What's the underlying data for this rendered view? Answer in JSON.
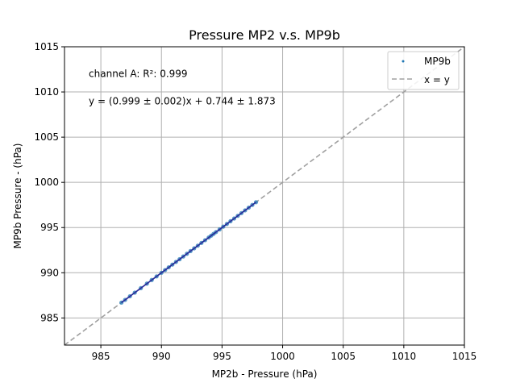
{
  "chart_data": {
    "type": "scatter",
    "title": "Pressure MP2 v.s. MP9b",
    "xlabel": "MP2b - Pressure (hPa)",
    "ylabel": "MP9b Pressure - (hPa)",
    "xlim": [
      982,
      1015
    ],
    "ylim": [
      982,
      1015
    ],
    "xticks": [
      "985",
      "990",
      "995",
      "1000",
      "1005",
      "1010",
      "1015"
    ],
    "yticks": [
      "985",
      "990",
      "995",
      "1000",
      "1005",
      "1010",
      "1015"
    ],
    "grid": true,
    "legend_position": "top-right",
    "annotations": [
      {
        "text": "channel A: R²: 0.999",
        "x": 984,
        "y": 1012
      },
      {
        "text": "y = (0.999 ± 0.002)x + 0.744 ± 1.873",
        "x": 984,
        "y": 1009
      }
    ],
    "series": [
      {
        "name": "MP9b",
        "kind": "scatter",
        "color": "#1f77b4",
        "points_x": [
          986.7,
          987.0,
          987.4,
          987.8,
          988.3,
          988.8,
          989.2,
          989.6,
          990.0,
          990.3,
          990.6,
          990.9,
          991.2,
          991.5,
          991.8,
          992.1,
          992.4,
          992.7,
          993.0,
          993.3,
          993.6,
          993.9,
          994.1,
          994.3,
          994.5,
          994.8,
          995.1,
          995.4,
          995.7,
          996.0,
          996.3,
          996.6,
          996.9,
          997.2,
          997.5,
          997.8
        ],
        "points_y": [
          986.7,
          987.0,
          987.4,
          987.8,
          988.3,
          988.8,
          989.2,
          989.6,
          990.0,
          990.3,
          990.6,
          990.9,
          991.2,
          991.5,
          991.8,
          992.1,
          992.4,
          992.7,
          993.0,
          993.3,
          993.6,
          993.9,
          994.1,
          994.3,
          994.5,
          994.8,
          995.1,
          995.4,
          995.7,
          996.0,
          996.3,
          996.6,
          996.9,
          997.2,
          997.5,
          997.8
        ]
      },
      {
        "name": "x = y",
        "kind": "line",
        "color": "#a0a0a0",
        "dash": "dashed"
      }
    ]
  }
}
